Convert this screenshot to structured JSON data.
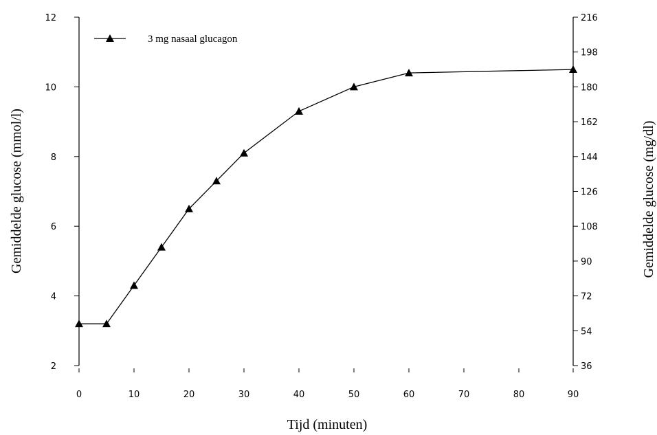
{
  "chart_data": {
    "type": "line",
    "xlabel": "Tijd (minuten)",
    "ylabel": "Gemiddelde glucose (mmol/l)",
    "y2label": "Gemiddelde glucose (mg/dl)",
    "x_ticks": [
      0,
      10,
      20,
      30,
      40,
      50,
      60,
      70,
      80,
      90
    ],
    "y_ticks": [
      2,
      4,
      6,
      8,
      10,
      12
    ],
    "y2_ticks": [
      36,
      54,
      72,
      90,
      108,
      126,
      144,
      162,
      180,
      198,
      216
    ],
    "xlim": [
      0,
      90
    ],
    "ylim": [
      2,
      12
    ],
    "y2lim": [
      36,
      216
    ],
    "grid": false,
    "legend_position": "top-left",
    "series": [
      {
        "name": "3 mg nasaal glucagon",
        "marker": "triangle",
        "color": "#000000",
        "x": [
          0,
          5,
          10,
          15,
          20,
          25,
          30,
          40,
          50,
          60,
          90
        ],
        "y": [
          3.2,
          3.2,
          4.3,
          5.4,
          6.5,
          7.3,
          8.1,
          9.3,
          10.0,
          10.4,
          10.5
        ]
      }
    ]
  }
}
